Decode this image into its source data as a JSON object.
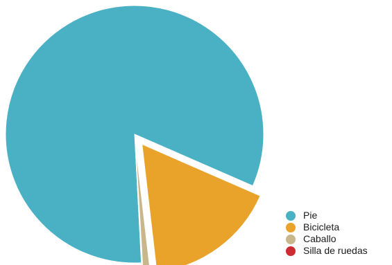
{
  "chart_data": {
    "type": "pie",
    "categories": [
      "Pie",
      "Bicicleta",
      "Caballo",
      "Silla de ruedas"
    ],
    "values": [
      82.4,
      16.6,
      0.9,
      0.1
    ],
    "colors": [
      "#4ab1c5",
      "#e9a32b",
      "#c8b78a",
      "#cc2b32"
    ],
    "exploded": [
      false,
      true,
      true,
      true
    ],
    "legend_position": "bottom-right",
    "title": ""
  },
  "legend": {
    "items": [
      {
        "label": "Pie",
        "color": "#4ab1c5"
      },
      {
        "label": "Bicicleta",
        "color": "#e9a32b"
      },
      {
        "label": "Caballo",
        "color": "#c8b78a"
      },
      {
        "label": "Silla de ruedas",
        "color": "#cc2b32"
      }
    ]
  }
}
